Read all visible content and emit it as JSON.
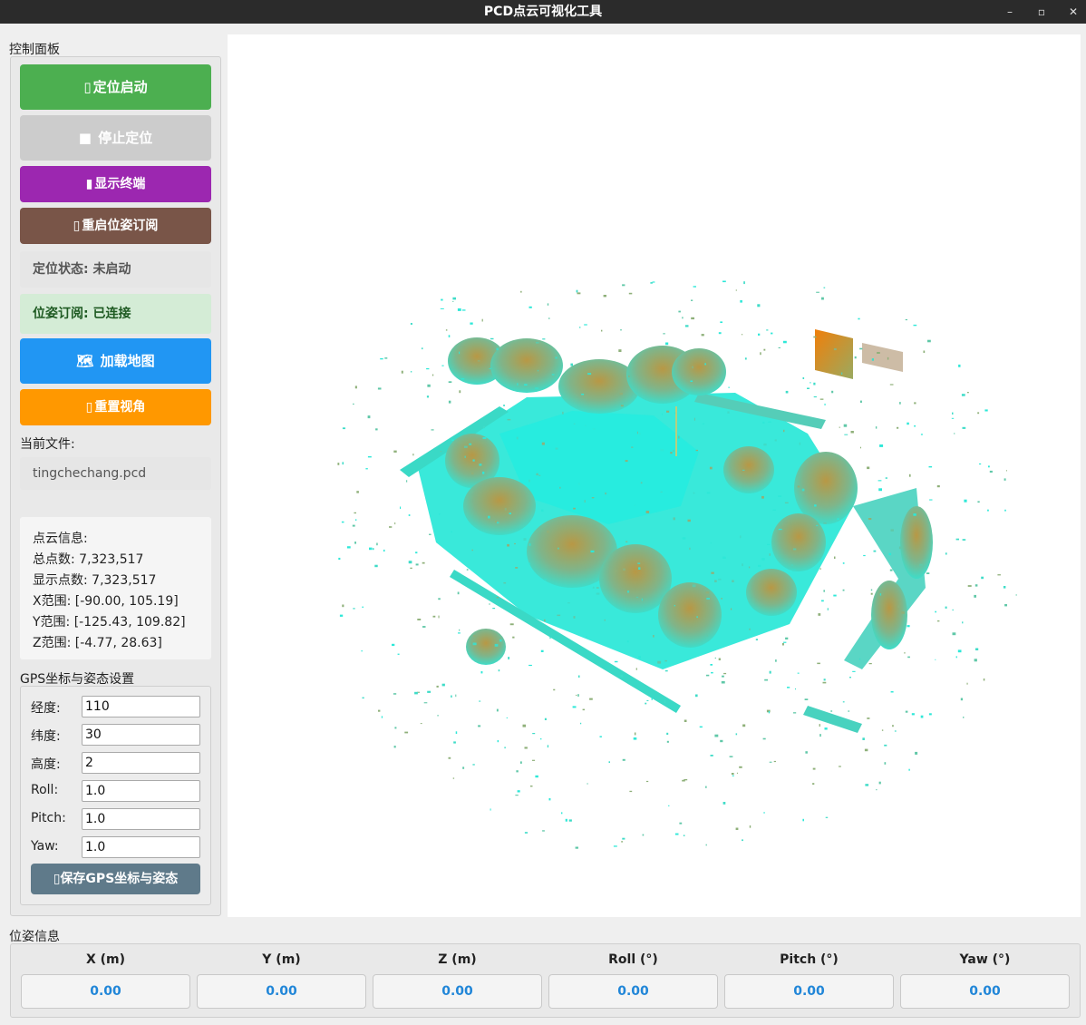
{
  "window": {
    "title": "PCD点云可视化工具",
    "minimize": "–",
    "maximize": "▫",
    "close": "✕"
  },
  "control_panel": {
    "group_title": "控制面板",
    "buttons": {
      "start": {
        "icon": "▯",
        "label": "定位启动",
        "color": "#4caf50"
      },
      "stop": {
        "icon": "■",
        "label": "停止定位",
        "color": "#cccccc"
      },
      "terminal": {
        "icon": "▮",
        "label": "显示终端",
        "color": "#9c27b0"
      },
      "restart": {
        "icon": "▯",
        "label": "重启位姿订阅",
        "color": "#795548"
      },
      "load_map": {
        "icon": "🗺",
        "label": "加载地图",
        "color": "#2196f3"
      },
      "reset_view": {
        "icon": "▯",
        "label": "重置视角",
        "color": "#ff9800"
      }
    },
    "loc_status": "定位状态: 未启动",
    "pose_sub_status": "位姿订阅: 已连接",
    "current_file_label": "当前文件:",
    "current_file": "tingchechang.pcd",
    "cloud_info": {
      "heading": "点云信息:",
      "total": "总点数: 7,323,517",
      "shown": "显示点数: 7,323,517",
      "x_range": "X范围: [-90.00, 105.19]",
      "y_range": "Y范围: [-125.43, 109.82]",
      "z_range": "Z范围: [-4.77, 28.63]"
    },
    "gps": {
      "group_title": "GPS坐标与姿态设置",
      "fields": [
        {
          "label": "经度:",
          "value": "110"
        },
        {
          "label": "纬度:",
          "value": "30"
        },
        {
          "label": "高度:",
          "value": "2"
        },
        {
          "label": "Roll:",
          "value": "1.0"
        },
        {
          "label": "Pitch:",
          "value": "1.0"
        },
        {
          "label": "Yaw:",
          "value": "1.0"
        }
      ],
      "save_button": {
        "icon": "▯",
        "label": "保存GPS坐标与姿态"
      }
    }
  },
  "pose": {
    "group_title": "位姿信息",
    "columns": [
      {
        "label": "X (m)",
        "value": "0.00"
      },
      {
        "label": "Y (m)",
        "value": "0.00"
      },
      {
        "label": "Z (m)",
        "value": "0.00"
      },
      {
        "label": "Roll (°)",
        "value": "0.00"
      },
      {
        "label": "Pitch (°)",
        "value": "0.00"
      },
      {
        "label": "Yaw (°)",
        "value": "0.00"
      }
    ]
  },
  "colors": {
    "cloud_low": "#2ee8d8",
    "cloud_mid": "#8fb07a",
    "cloud_high": "#f08a10",
    "value_text": "#2186d8"
  }
}
